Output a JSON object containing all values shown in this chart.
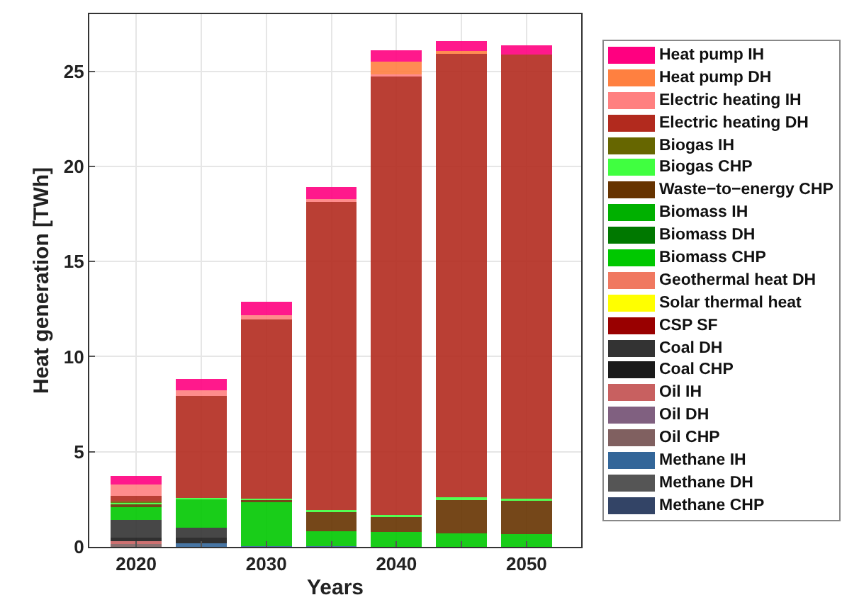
{
  "chart_data": {
    "type": "bar",
    "stacked": true,
    "xlabel": "Years",
    "ylabel": "Heat generation [TWh]",
    "x": [
      2020,
      2025,
      2030,
      2035,
      2040,
      2045,
      2050
    ],
    "xlim": [
      2016.4,
      2054.2
    ],
    "xticks": [
      2020,
      {
        "value": 2025,
        "label": null
      },
      2030,
      {
        "value": 2035,
        "label": null
      },
      2040,
      {
        "value": 2045,
        "label": null
      },
      2050
    ],
    "ylim": [
      0,
      28
    ],
    "yticks": [
      0,
      5,
      10,
      15,
      20,
      25
    ],
    "grid": true,
    "legend": "right",
    "series": [
      {
        "name": "Methane CHP",
        "color": "#334466",
        "values": [
          0,
          0,
          0,
          0,
          0,
          0,
          0
        ]
      },
      {
        "name": "Methane DH",
        "color": "#555555",
        "values": [
          0,
          0,
          0,
          0,
          0,
          0,
          0
        ]
      },
      {
        "name": "Methane IH",
        "color": "#336699",
        "values": [
          0,
          0.2,
          0.05,
          0.05,
          0,
          0,
          0
        ]
      },
      {
        "name": "Oil CHP",
        "color": "#806060",
        "values": [
          0.15,
          0,
          0,
          0,
          0,
          0,
          0
        ]
      },
      {
        "name": "Oil DH",
        "color": "#806080",
        "values": [
          0,
          0,
          0,
          0,
          0,
          0,
          0
        ]
      },
      {
        "name": "Oil IH",
        "color": "#c86060",
        "values": [
          0.15,
          0,
          0,
          0,
          0,
          0,
          0
        ]
      },
      {
        "name": "Coal CHP",
        "color": "#1a1a1a",
        "values": [
          0.2,
          0.3,
          0,
          0,
          0,
          0,
          0
        ]
      },
      {
        "name": "Coal DH",
        "color": "#333333",
        "values": [
          0.9,
          0.5,
          0,
          0,
          0,
          0,
          0
        ]
      },
      {
        "name": "CSP SF",
        "color": "#990000",
        "values": [
          0,
          0,
          0,
          0,
          0,
          0,
          0
        ]
      },
      {
        "name": "Solar thermal heat",
        "color": "#ffff00",
        "values": [
          0,
          0,
          0,
          0,
          0,
          0,
          0
        ]
      },
      {
        "name": "Geothermal heat DH",
        "color": "#f07860",
        "values": [
          0,
          0,
          0,
          0,
          0,
          0,
          0
        ]
      },
      {
        "name": "Biomass CHP",
        "color": "#00c800",
        "values": [
          0.7,
          1.5,
          2.3,
          0.77,
          0.77,
          0.69,
          0.67
        ]
      },
      {
        "name": "Biomass DH",
        "color": "#007800",
        "values": [
          0,
          0,
          0,
          0,
          0,
          0,
          0
        ]
      },
      {
        "name": "Biomass IH",
        "color": "#00b000",
        "values": [
          0,
          0,
          0,
          0,
          0,
          0,
          0
        ]
      },
      {
        "name": "Waste−to−energy CHP",
        "color": "#663300",
        "values": [
          0.12,
          0,
          0.12,
          1.0,
          0.79,
          1.78,
          1.75
        ]
      },
      {
        "name": "Biogas CHP",
        "color": "#40ff40",
        "values": [
          0.08,
          0.07,
          0.07,
          0.12,
          0.12,
          0.12,
          0.1
        ]
      },
      {
        "name": "Biogas IH",
        "color": "#666600",
        "values": [
          0.07,
          0,
          0,
          0,
          0,
          0,
          0
        ]
      },
      {
        "name": "Electric heating DH",
        "color": "#b22a1e",
        "values": [
          0.3,
          5.35,
          9.4,
          16.18,
          23.05,
          23.32,
          23.35
        ]
      },
      {
        "name": "Electric heating IH",
        "color": "#ff8080",
        "values": [
          0.6,
          0.32,
          0.23,
          0.18,
          0.12,
          0,
          0
        ]
      },
      {
        "name": "Heat pump DH",
        "color": "#ff8040",
        "values": [
          0,
          0,
          0,
          0,
          0.67,
          0.15,
          0
        ]
      },
      {
        "name": "Heat pump IH",
        "color": "#ff0080",
        "values": [
          0.45,
          0.57,
          0.72,
          0.62,
          0.59,
          0.52,
          0.51
        ]
      }
    ]
  }
}
